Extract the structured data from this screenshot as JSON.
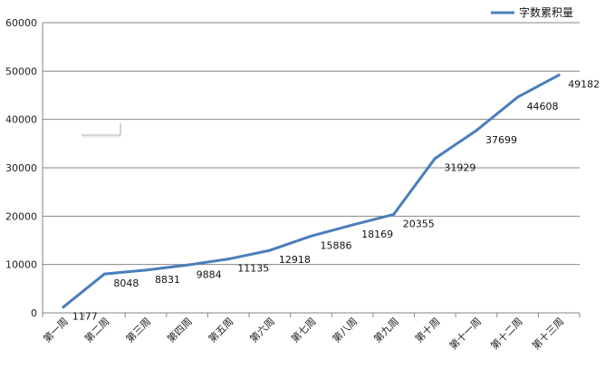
{
  "chart_data": {
    "type": "line",
    "categories": [
      "第一周",
      "第二周",
      "第三周",
      "第四周",
      "第五周",
      "第六周",
      "第七周",
      "第八周",
      "第九周",
      "第十周",
      "第十一周",
      "第十二周",
      "第十三周"
    ],
    "series": [
      {
        "name": "字数累积量",
        "values": [
          1177,
          8048,
          8831,
          9884,
          11135,
          12918,
          15886,
          18169,
          20355,
          31929,
          37699,
          44608,
          49182
        ]
      }
    ],
    "yticks": [
      "0",
      "10000",
      "20000",
      "30000",
      "40000",
      "50000",
      "60000"
    ],
    "ylim": [
      0,
      60000
    ],
    "grid": true,
    "legend_position": "top-right",
    "line_color": "#4A7EBB",
    "grid_color": "#868686",
    "title": "",
    "xlabel": "",
    "ylabel": ""
  }
}
